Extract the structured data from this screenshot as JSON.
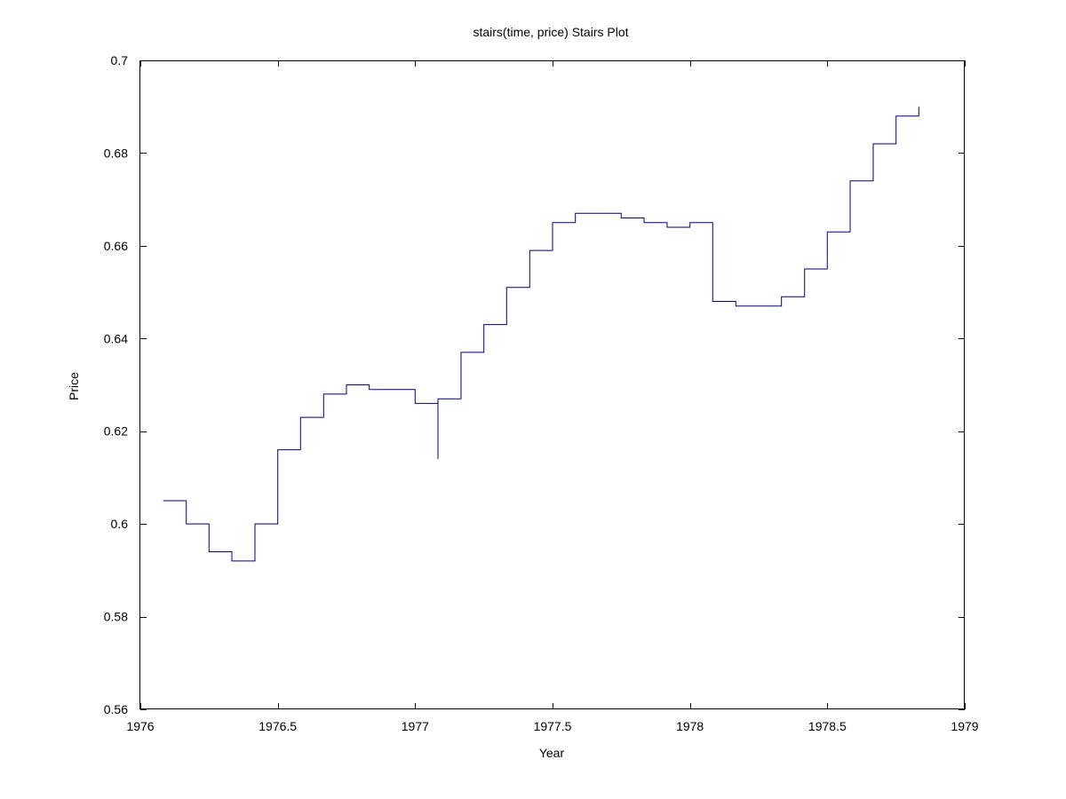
{
  "chart_data": {
    "type": "line",
    "style": "stairs",
    "title": "stairs(time, price) Stairs Plot",
    "xlabel": "Year",
    "ylabel": "Price",
    "xlim": [
      1976,
      1979
    ],
    "ylim": [
      0.56,
      0.7
    ],
    "xticks": [
      1976,
      1976.5,
      1977,
      1977.5,
      1978,
      1978.5,
      1979
    ],
    "xtick_labels": [
      "1976",
      "1976.5",
      "1977",
      "1977.5",
      "1978",
      "1978.5",
      "1979"
    ],
    "yticks": [
      0.56,
      0.58,
      0.6,
      0.62,
      0.64,
      0.66,
      0.68,
      0.7
    ],
    "ytick_labels": [
      "0.56",
      "0.58",
      "0.6",
      "0.62",
      "0.64",
      "0.66",
      "0.68",
      "0.7"
    ],
    "grid": false,
    "line_color": "#000080",
    "series": [
      {
        "x": [
          1976.083,
          1976.167,
          1976.25,
          1976.333,
          1976.417,
          1976.5,
          1976.583,
          1976.667,
          1976.75,
          1976.833,
          1976.917,
          1977.0,
          1977.083,
          1977.083,
          1977.167,
          1977.25,
          1977.333,
          1977.417,
          1977.5,
          1977.583,
          1977.667,
          1977.75,
          1977.833,
          1977.917,
          1978.0,
          1978.083,
          1978.167,
          1978.25,
          1978.333,
          1978.417,
          1978.5,
          1978.583,
          1978.667,
          1978.75,
          1978.833
        ],
        "y": [
          0.605,
          0.6,
          0.594,
          0.592,
          0.6,
          0.616,
          0.623,
          0.628,
          0.63,
          0.629,
          0.629,
          0.626,
          0.614,
          0.627,
          0.637,
          0.643,
          0.651,
          0.659,
          0.665,
          0.667,
          0.667,
          0.666,
          0.665,
          0.664,
          0.665,
          0.648,
          0.647,
          0.647,
          0.649,
          0.655,
          0.663,
          0.674,
          0.682,
          0.688,
          0.69
        ]
      }
    ]
  }
}
